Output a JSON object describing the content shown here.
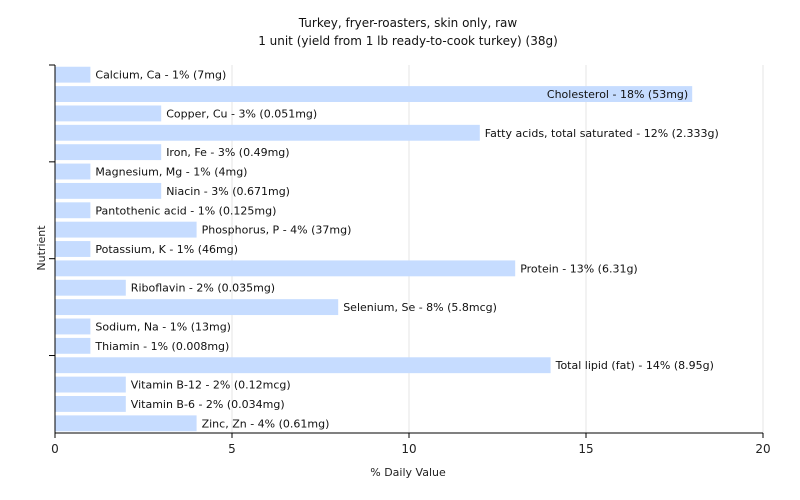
{
  "chart_data": {
    "type": "bar",
    "orientation": "horizontal",
    "title": "Turkey, fryer-roasters, skin only, raw",
    "subtitle": "1 unit (yield from 1 lb ready-to-cook turkey) (38g)",
    "xlabel": "% Daily Value",
    "ylabel": "Nutrient",
    "xlim": [
      0,
      20
    ],
    "xticks": [
      0,
      5,
      10,
      15,
      20
    ],
    "grid": true,
    "bar_color": "#c6dcff",
    "categories": [
      "Calcium, Ca",
      "Cholesterol",
      "Copper, Cu",
      "Fatty acids, total saturated",
      "Iron, Fe",
      "Magnesium, Mg",
      "Niacin",
      "Pantothenic acid",
      "Phosphorus, P",
      "Potassium, K",
      "Protein",
      "Riboflavin",
      "Selenium, Se",
      "Sodium, Na",
      "Thiamin",
      "Total lipid (fat)",
      "Vitamin B-12",
      "Vitamin B-6",
      "Zinc, Zn"
    ],
    "values": [
      1,
      18,
      3,
      12,
      3,
      1,
      3,
      1,
      4,
      1,
      13,
      2,
      8,
      1,
      1,
      14,
      2,
      2,
      4
    ],
    "labels": [
      "Calcium, Ca - 1% (7mg)",
      "Cholesterol - 18% (53mg)",
      "Copper, Cu - 3% (0.051mg)",
      "Fatty acids, total saturated - 12% (2.333g)",
      "Iron, Fe - 3% (0.49mg)",
      "Magnesium, Mg - 1% (4mg)",
      "Niacin - 3% (0.671mg)",
      "Pantothenic acid - 1% (0.125mg)",
      "Phosphorus, P - 4% (37mg)",
      "Potassium, K - 1% (46mg)",
      "Protein - 13% (6.31g)",
      "Riboflavin - 2% (0.035mg)",
      "Selenium, Se - 8% (5.8mcg)",
      "Sodium, Na - 1% (13mg)",
      "Thiamin - 1% (0.008mg)",
      "Total lipid (fat) - 14% (8.95g)",
      "Vitamin B-12 - 2% (0.12mcg)",
      "Vitamin B-6 - 2% (0.034mg)",
      "Zinc, Zn - 4% (0.61mg)"
    ]
  }
}
